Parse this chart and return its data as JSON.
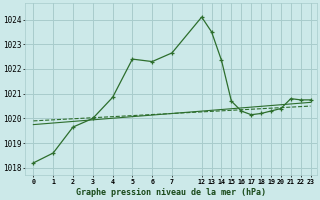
{
  "bg_color": "#cce9e9",
  "grid_color": "#a8cccc",
  "line_color": "#2d6e2d",
  "title": "Graphe pression niveau de la mer (hPa)",
  "ylabel_vals": [
    1018,
    1019,
    1020,
    1021,
    1022,
    1023,
    1024
  ],
  "series1_y": [
    1018.2,
    1018.6,
    1019.65,
    1020.0,
    1020.85,
    1022.4,
    1022.3,
    1022.65,
    1024.1,
    1023.5,
    1022.35,
    1020.7,
    1020.3,
    1020.15,
    1020.2,
    1020.3,
    1020.4,
    1020.8,
    1020.75,
    1020.75
  ],
  "trend1_y": [
    1019.75,
    1020.65
  ],
  "trend2_y": [
    1019.9,
    1020.5
  ],
  "ylim": [
    1017.7,
    1024.65
  ],
  "figsize": [
    3.2,
    2.0
  ],
  "dpi": 100
}
